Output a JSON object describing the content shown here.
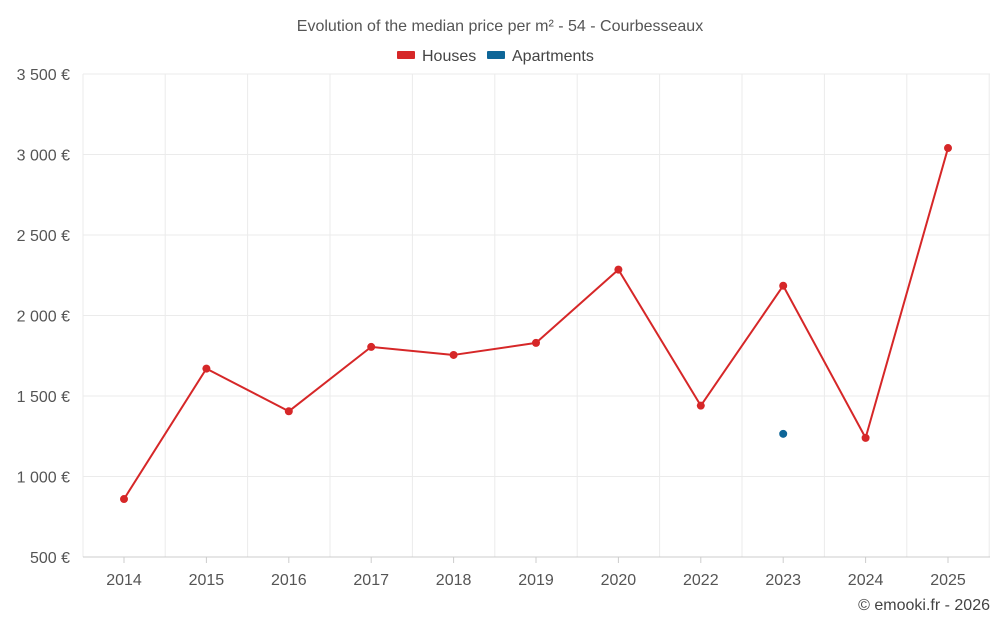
{
  "chart_data": {
    "type": "line",
    "title": "Evolution of the median price per m² - 54 - Courbesseaux",
    "categories": [
      "2014",
      "2015",
      "2016",
      "2017",
      "2018",
      "2019",
      "2020",
      "2022",
      "2023",
      "2024",
      "2025"
    ],
    "y_ticks": [
      500,
      1000,
      1500,
      2000,
      2500,
      3000,
      3500
    ],
    "y_tick_labels": [
      "500 €",
      "1 000 €",
      "1 500 €",
      "2 000 €",
      "2 500 €",
      "3 000 €",
      "3 500 €"
    ],
    "ylim": [
      500,
      3500
    ],
    "grid": true,
    "legend_position": "top-center",
    "series": [
      {
        "name": "Houses",
        "color": "#d62728",
        "values": [
          860,
          1670,
          1405,
          1805,
          1755,
          1830,
          2285,
          1440,
          2185,
          1240,
          3040
        ]
      },
      {
        "name": "Apartments",
        "color": "#0e6698",
        "values": [
          null,
          null,
          null,
          null,
          null,
          null,
          null,
          null,
          1265,
          null,
          null
        ]
      }
    ],
    "credit": "© emooki.fr - 2026"
  }
}
